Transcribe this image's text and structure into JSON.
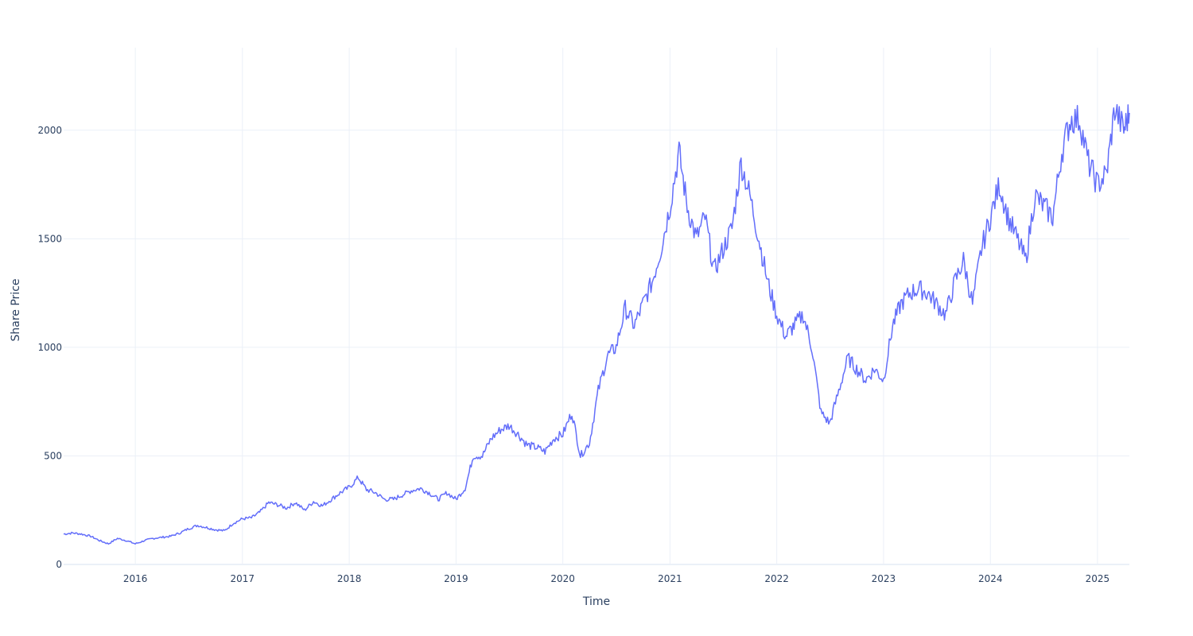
{
  "chart_data": {
    "type": "line",
    "xlabel": "Time",
    "ylabel": "Share Price",
    "xlim": [
      "2015-05-01",
      "2025-04-20"
    ],
    "ylim": [
      0,
      2380
    ],
    "grid": true,
    "x_ticks": [
      "2016",
      "2017",
      "2018",
      "2019",
      "2020",
      "2021",
      "2022",
      "2023",
      "2024",
      "2025"
    ],
    "y_ticks": [
      0,
      500,
      1000,
      1500,
      2000
    ],
    "line_color": "#636efa",
    "series": [
      {
        "x": [
          "2015-05-01",
          "2015-06-01",
          "2015-07-01",
          "2015-08-01",
          "2015-09-01",
          "2015-10-01",
          "2015-11-01",
          "2015-12-01",
          "2016-01-01",
          "2016-02-01",
          "2016-03-01",
          "2016-04-01",
          "2016-05-01",
          "2016-06-01",
          "2016-07-01",
          "2016-08-01",
          "2016-09-01",
          "2016-10-01",
          "2016-11-01",
          "2016-12-01",
          "2017-01-01",
          "2017-02-01",
          "2017-03-01",
          "2017-04-01",
          "2017-05-01",
          "2017-06-01",
          "2017-07-01",
          "2017-08-01",
          "2017-09-01",
          "2017-10-01",
          "2017-11-01",
          "2017-12-01",
          "2018-01-01",
          "2018-02-01",
          "2018-03-01",
          "2018-04-01",
          "2018-05-01",
          "2018-06-01",
          "2018-07-01",
          "2018-08-01",
          "2018-09-01",
          "2018-10-01",
          "2018-11-01",
          "2018-12-01",
          "2019-01-01",
          "2019-02-01",
          "2019-03-01",
          "2019-04-01",
          "2019-05-01",
          "2019-06-01",
          "2019-07-01",
          "2019-08-01",
          "2019-09-01",
          "2019-10-01",
          "2019-11-01",
          "2019-12-01",
          "2020-01-01",
          "2020-02-01",
          "2020-03-01",
          "2020-04-01",
          "2020-05-01",
          "2020-06-01",
          "2020-07-01",
          "2020-08-01",
          "2020-09-01",
          "2020-10-01",
          "2020-11-01",
          "2020-12-01",
          "2021-01-01",
          "2021-02-01",
          "2021-03-01",
          "2021-04-01",
          "2021-05-01",
          "2021-06-01",
          "2021-07-01",
          "2021-08-01",
          "2021-09-01",
          "2021-10-01",
          "2021-11-01",
          "2021-12-01",
          "2022-01-01",
          "2022-02-01",
          "2022-03-01",
          "2022-04-01",
          "2022-05-01",
          "2022-06-01",
          "2022-07-01",
          "2022-08-01",
          "2022-09-01",
          "2022-10-01",
          "2022-11-01",
          "2022-12-01",
          "2023-01-01",
          "2023-02-01",
          "2023-03-01",
          "2023-04-01",
          "2023-05-01",
          "2023-06-01",
          "2023-07-01",
          "2023-08-01",
          "2023-09-01",
          "2023-10-01",
          "2023-11-01",
          "2023-12-01",
          "2024-01-01",
          "2024-02-01",
          "2024-03-01",
          "2024-04-01",
          "2024-05-01",
          "2024-06-01",
          "2024-07-01",
          "2024-08-01",
          "2024-09-01",
          "2024-10-01",
          "2024-11-01",
          "2024-12-01",
          "2025-01-01",
          "2025-02-01",
          "2025-03-01",
          "2025-04-01",
          "2025-04-20"
        ],
        "y": [
          140,
          145,
          140,
          130,
          110,
          95,
          120,
          110,
          95,
          110,
          120,
          125,
          130,
          145,
          165,
          180,
          170,
          160,
          155,
          190,
          210,
          215,
          240,
          285,
          275,
          260,
          285,
          250,
          290,
          270,
          300,
          330,
          355,
          400,
          345,
          330,
          300,
          300,
          320,
          340,
          350,
          330,
          300,
          330,
          300,
          350,
          500,
          500,
          580,
          620,
          640,
          600,
          550,
          540,
          520,
          580,
          600,
          700,
          500,
          560,
          800,
          960,
          1000,
          1180,
          1100,
          1200,
          1300,
          1450,
          1650,
          1900,
          1650,
          1500,
          1600,
          1350,
          1450,
          1550,
          1850,
          1700,
          1500,
          1300,
          1150,
          1050,
          1100,
          1150,
          1000,
          700,
          650,
          800,
          950,
          900,
          850,
          900,
          850,
          1100,
          1200,
          1250,
          1270,
          1250,
          1200,
          1150,
          1300,
          1400,
          1200,
          1450,
          1600,
          1750,
          1600,
          1500,
          1400,
          1700,
          1650,
          1600,
          1900,
          2050,
          2050,
          1850,
          1750,
          1800,
          2100,
          2000,
          2080
        ]
      }
    ]
  }
}
